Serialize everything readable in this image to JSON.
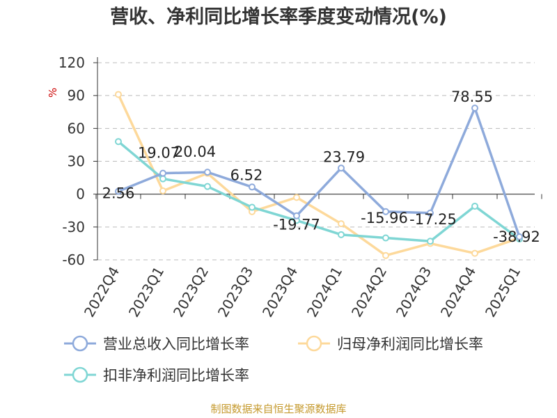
{
  "chart_data": {
    "type": "line",
    "title": "营收、净利同比增长率季度变动情况(%)",
    "ylabel": "%",
    "categories": [
      "2022Q4",
      "2023Q1",
      "2023Q2",
      "2023Q3",
      "2023Q4",
      "2024Q1",
      "2024Q2",
      "2024Q3",
      "2024Q4",
      "2025Q1"
    ],
    "ylim": [
      -60,
      120
    ],
    "yticks": [
      120,
      90,
      60,
      30,
      0,
      -30,
      -60
    ],
    "grid": true,
    "legend_position": "bottom",
    "series": [
      {
        "name": "营业总收入同比增长率",
        "color": "#8eaadb",
        "values": [
          2.56,
          19.07,
          20.04,
          6.52,
          -19.77,
          23.79,
          -15.96,
          -17.25,
          78.55,
          -38.92
        ],
        "labels": [
          "2.56",
          "19.07",
          "20.04",
          "6.52",
          "-19.77",
          "23.79",
          "-15.96",
          "-17.25",
          "78.55",
          "-38.92"
        ]
      },
      {
        "name": "归母净利润同比增长率",
        "color": "#fdd99b",
        "values": [
          91,
          3,
          19,
          -16,
          -3,
          -27,
          -56,
          -45,
          -54,
          -40
        ]
      },
      {
        "name": "扣非净利润同比增长率",
        "color": "#7fd6d4",
        "values": [
          48,
          14,
          7,
          -12,
          -24,
          -37,
          -40,
          -43,
          -11,
          -41
        ]
      }
    ]
  },
  "footer": {
    "source": "制图数据来自恒生聚源数据库"
  }
}
